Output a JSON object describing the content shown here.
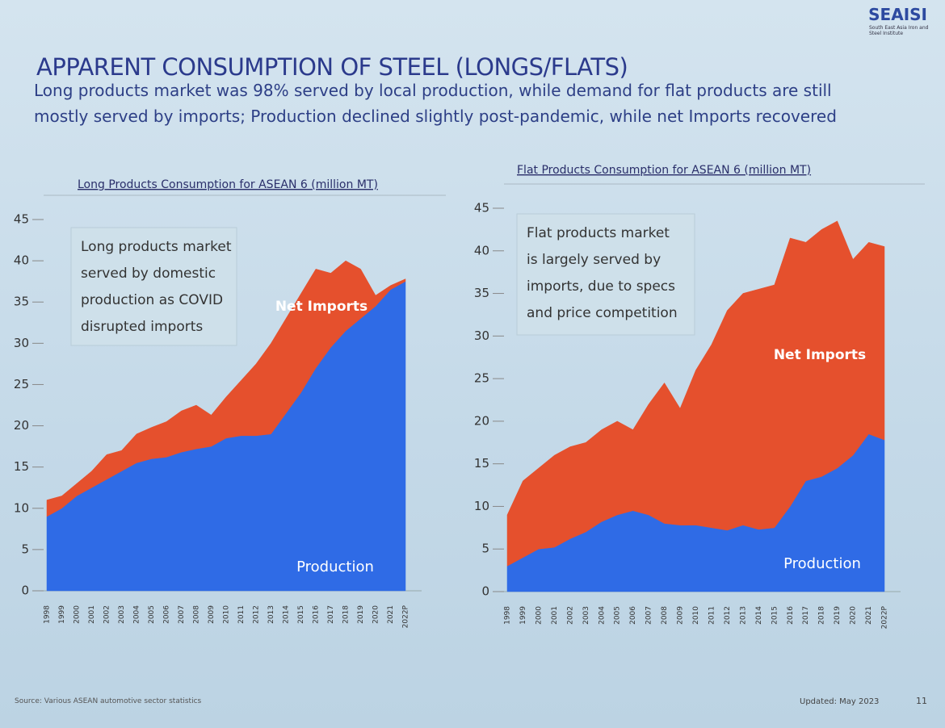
{
  "slide": {
    "logo": "SEAISI",
    "logo_subtitle": "South East Asia Iron and Steel Institute",
    "title": "APPARENT CONSUMPTION OF STEEL (LONGS/FLATS)",
    "subtitle": "Long products market was 98% served by local production, while demand for flat products are still mostly served by imports; Production declined slightly post-pandemic, while net Imports recovered",
    "source": "Source: Various ASEAN automotive sector statistics",
    "updated": "Updated: May 2023",
    "page": "11"
  },
  "chart_data": [
    {
      "type": "stacked_area",
      "title": "Long Products Consumption for ASEAN 6 (million MT)",
      "annotation_lines": [
        "Long products market",
        "served by domestic",
        "production as COVID",
        "disrupted imports"
      ],
      "categories": [
        "1998",
        "1999",
        "2000",
        "2001",
        "2002",
        "2003",
        "2004",
        "2005",
        "2006",
        "2007",
        "2008",
        "2009",
        "2010",
        "2011",
        "2012",
        "2013",
        "2014",
        "2015",
        "2016",
        "2017",
        "2018",
        "2019",
        "2020",
        "2021",
        "2022P"
      ],
      "series": [
        {
          "name": "Production",
          "color": "#2f6be6",
          "values": [
            9,
            10,
            11.5,
            12.5,
            13.5,
            14.5,
            15.5,
            16,
            16.2,
            16.8,
            17.2,
            17.5,
            18.5,
            18.8,
            18.8,
            19,
            21.5,
            24,
            27,
            29.5,
            31.5,
            33,
            34.5,
            36.5,
            37.5
          ]
        },
        {
          "name": "Net Imports",
          "color": "#e5502d",
          "values": [
            2,
            1.5,
            1.5,
            2,
            3,
            2.5,
            3.5,
            3.8,
            4.3,
            5,
            5.3,
            3.8,
            5,
            6.7,
            8.7,
            11,
            11.5,
            12,
            12,
            9,
            8.5,
            6,
            1.3,
            0.5,
            0.3
          ]
        }
      ],
      "ylim": [
        0,
        45
      ],
      "yticks": [
        0,
        5,
        10,
        15,
        20,
        25,
        30,
        35,
        40,
        45
      ],
      "grid": false
    },
    {
      "type": "stacked_area",
      "title": "Flat Products Consumption for ASEAN 6 (million MT)",
      "annotation_lines": [
        "Flat products market",
        "is largely served by",
        "imports, due to specs",
        "and price competition"
      ],
      "categories": [
        "1998",
        "1999",
        "2000",
        "2001",
        "2002",
        "2003",
        "2004",
        "2005",
        "2006",
        "2007",
        "2008",
        "2009",
        "2010",
        "2011",
        "2012",
        "2013",
        "2014",
        "2015",
        "2016",
        "2017",
        "2018",
        "2019",
        "2020",
        "2021",
        "2022P"
      ],
      "series": [
        {
          "name": "Production",
          "color": "#2f6be6",
          "values": [
            3,
            4,
            5,
            5.2,
            6.2,
            7,
            8.2,
            9,
            9.5,
            9,
            8,
            7.8,
            7.8,
            7.5,
            7.2,
            7.8,
            7.3,
            7.5,
            10,
            13,
            13.5,
            14.5,
            16,
            18.5,
            17.8
          ]
        },
        {
          "name": "Net Imports",
          "color": "#e5502d",
          "values": [
            6,
            9,
            9.5,
            10.8,
            10.8,
            10.5,
            10.8,
            11,
            9.5,
            13,
            16.5,
            13.7,
            18.2,
            21.5,
            25.8,
            27.2,
            28.2,
            28.5,
            31.5,
            28,
            29,
            29,
            23,
            22.5,
            22.7
          ]
        }
      ],
      "ylim": [
        0,
        45
      ],
      "yticks": [
        0,
        5,
        10,
        15,
        20,
        25,
        30,
        35,
        40,
        45
      ],
      "grid": false
    }
  ]
}
